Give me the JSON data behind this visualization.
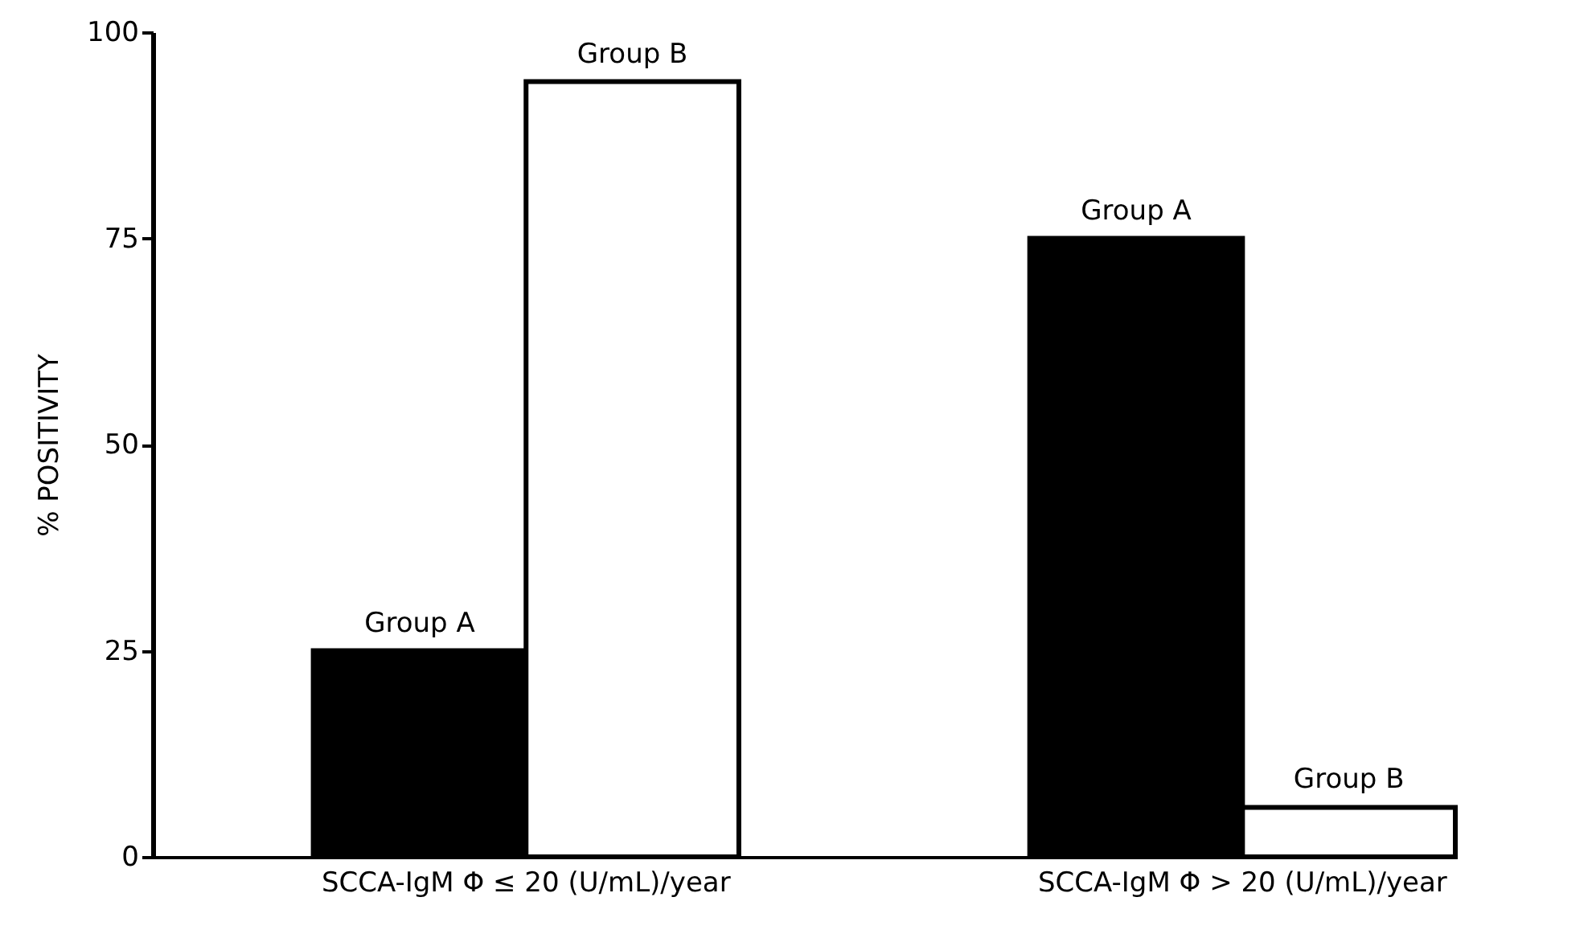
{
  "chart_data": {
    "type": "bar",
    "ylabel": "% POSITIVITY",
    "categories": [
      "SCCA-IgM  Φ ≤ 20 (U/mL)/year",
      "SCCA-IgM  Φ > 20 (U/mL)/year"
    ],
    "series": [
      {
        "name": "Group A",
        "color": "#000000",
        "values": [
          25,
          75
        ]
      },
      {
        "name": "Group B",
        "color": "#ffffff",
        "values": [
          94,
          6
        ]
      }
    ],
    "ylim": [
      0,
      100
    ],
    "yticks": [
      0,
      25,
      50,
      75,
      100
    ]
  }
}
